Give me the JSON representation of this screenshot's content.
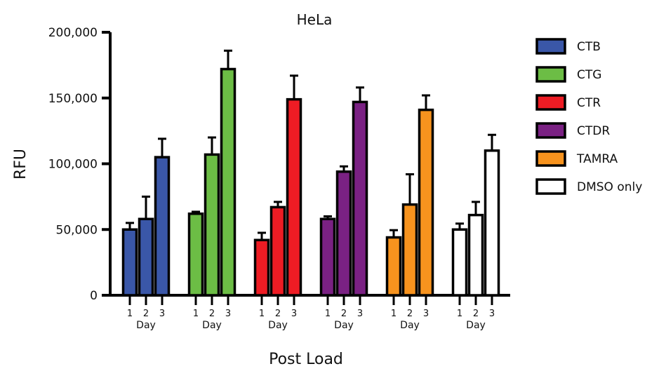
{
  "chart_data": {
    "type": "bar",
    "title": "HeLa",
    "xlabel": "Post Load",
    "ylabel": "RFU",
    "ylim": [
      0,
      200000
    ],
    "yticks": [
      0,
      50000,
      100000,
      150000,
      200000
    ],
    "ytick_labels": [
      "0",
      "50,000",
      "100,000",
      "150,000",
      "200,000"
    ],
    "categories": [
      "1",
      "2",
      "3"
    ],
    "group_label": "Day",
    "grid": false,
    "legend_position": "right",
    "series": [
      {
        "name": "CTB",
        "color": "#3a57a8",
        "values": [
          50000,
          58000,
          105000
        ],
        "errors": [
          5000,
          17000,
          14000
        ]
      },
      {
        "name": "CTG",
        "color": "#6cbd45",
        "values": [
          62000,
          107000,
          172000
        ],
        "errors": [
          1500,
          13000,
          14000
        ]
      },
      {
        "name": "CTR",
        "color": "#ee1c24",
        "values": [
          42000,
          67000,
          149000
        ],
        "errors": [
          5500,
          4000,
          18000
        ]
      },
      {
        "name": "CTDR",
        "color": "#7a2183",
        "values": [
          58000,
          94000,
          147000
        ],
        "errors": [
          2000,
          4000,
          11000
        ]
      },
      {
        "name": "TAMRA",
        "color": "#f7931e",
        "values": [
          44000,
          69000,
          141000
        ],
        "errors": [
          5500,
          23000,
          11000
        ]
      },
      {
        "name": "DMSO only",
        "color": "#ffffff",
        "values": [
          50000,
          61000,
          110000
        ],
        "errors": [
          4500,
          10000,
          12000
        ]
      }
    ]
  }
}
